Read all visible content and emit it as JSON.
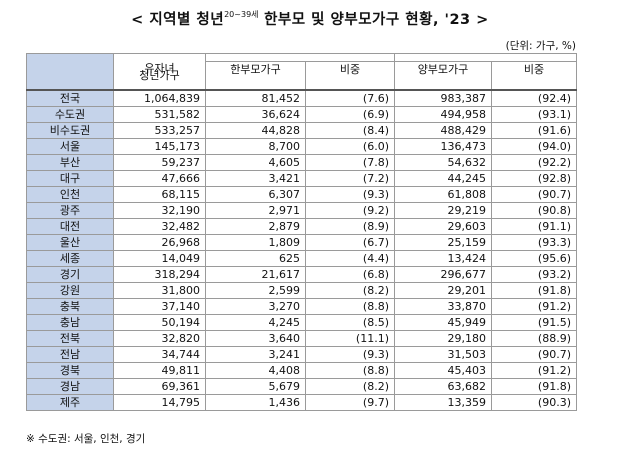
{
  "title": {
    "prefix": "< 지역별 청년",
    "age_sup": "20~39세",
    "suffix": " 한부모 및 양부모가구 현황, '23 >"
  },
  "unit_note": "(단위: 가구, %)",
  "headers": {
    "youth_households_line1": "유자녀",
    "youth_households_line2": "청년가구",
    "single_parent": "한부모가구",
    "single_parent_ratio": "비중",
    "two_parent": "양부모가구",
    "two_parent_ratio": "비중"
  },
  "rows": [
    {
      "region": "전국",
      "youth": "1,064,839",
      "single": "81,452",
      "single_ratio": "(7.6)",
      "two": "983,387",
      "two_ratio": "(92.4)"
    },
    {
      "region": "수도권",
      "youth": "531,582",
      "single": "36,624",
      "single_ratio": "(6.9)",
      "two": "494,958",
      "two_ratio": "(93.1)"
    },
    {
      "region": "비수도권",
      "youth": "533,257",
      "single": "44,828",
      "single_ratio": "(8.4)",
      "two": "488,429",
      "two_ratio": "(91.6)"
    },
    {
      "region": "서울",
      "youth": "145,173",
      "single": "8,700",
      "single_ratio": "(6.0)",
      "two": "136,473",
      "two_ratio": "(94.0)"
    },
    {
      "region": "부산",
      "youth": "59,237",
      "single": "4,605",
      "single_ratio": "(7.8)",
      "two": "54,632",
      "two_ratio": "(92.2)"
    },
    {
      "region": "대구",
      "youth": "47,666",
      "single": "3,421",
      "single_ratio": "(7.2)",
      "two": "44,245",
      "two_ratio": "(92.8)"
    },
    {
      "region": "인천",
      "youth": "68,115",
      "single": "6,307",
      "single_ratio": "(9.3)",
      "two": "61,808",
      "two_ratio": "(90.7)"
    },
    {
      "region": "광주",
      "youth": "32,190",
      "single": "2,971",
      "single_ratio": "(9.2)",
      "two": "29,219",
      "two_ratio": "(90.8)"
    },
    {
      "region": "대전",
      "youth": "32,482",
      "single": "2,879",
      "single_ratio": "(8.9)",
      "two": "29,603",
      "two_ratio": "(91.1)"
    },
    {
      "region": "울산",
      "youth": "26,968",
      "single": "1,809",
      "single_ratio": "(6.7)",
      "two": "25,159",
      "two_ratio": "(93.3)"
    },
    {
      "region": "세종",
      "youth": "14,049",
      "single": "625",
      "single_ratio": "(4.4)",
      "two": "13,424",
      "two_ratio": "(95.6)"
    },
    {
      "region": "경기",
      "youth": "318,294",
      "single": "21,617",
      "single_ratio": "(6.8)",
      "two": "296,677",
      "two_ratio": "(93.2)"
    },
    {
      "region": "강원",
      "youth": "31,800",
      "single": "2,599",
      "single_ratio": "(8.2)",
      "two": "29,201",
      "two_ratio": "(91.8)"
    },
    {
      "region": "충북",
      "youth": "37,140",
      "single": "3,270",
      "single_ratio": "(8.8)",
      "two": "33,870",
      "two_ratio": "(91.2)"
    },
    {
      "region": "충남",
      "youth": "50,194",
      "single": "4,245",
      "single_ratio": "(8.5)",
      "two": "45,949",
      "two_ratio": "(91.5)"
    },
    {
      "region": "전북",
      "youth": "32,820",
      "single": "3,640",
      "single_ratio": "(11.1)",
      "two": "29,180",
      "two_ratio": "(88.9)"
    },
    {
      "region": "전남",
      "youth": "34,744",
      "single": "3,241",
      "single_ratio": "(9.3)",
      "two": "31,503",
      "two_ratio": "(90.7)"
    },
    {
      "region": "경북",
      "youth": "49,811",
      "single": "4,408",
      "single_ratio": "(8.8)",
      "two": "45,403",
      "two_ratio": "(91.2)"
    },
    {
      "region": "경남",
      "youth": "69,361",
      "single": "5,679",
      "single_ratio": "(8.2)",
      "two": "63,682",
      "two_ratio": "(91.8)"
    },
    {
      "region": "제주",
      "youth": "14,795",
      "single": "1,436",
      "single_ratio": "(9.7)",
      "two": "13,359",
      "two_ratio": "(90.3)"
    }
  ],
  "footnote": "※ 수도권: 서울, 인천, 경기",
  "colors": {
    "region_cell_bg": "#c5d3ea",
    "border": "#9a9a9a"
  }
}
